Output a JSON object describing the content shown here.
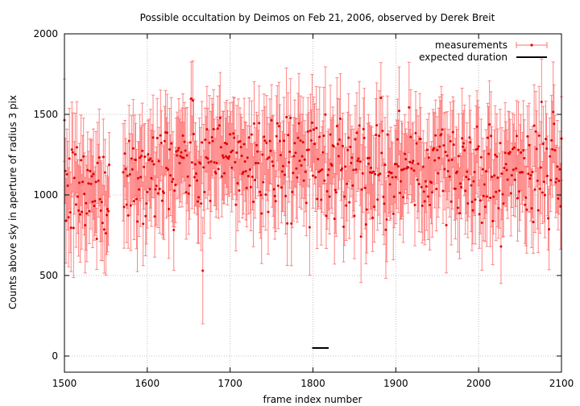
{
  "chart_data": {
    "type": "scatter",
    "title": "Possible occultation by Deimos on Feb 21, 2006, observed by Derek Breit",
    "xlabel": "frame index number",
    "ylabel": "Counts above sky in aperture of radius 3 pix",
    "xlim": [
      1500,
      2100
    ],
    "ylim": [
      -100,
      2000
    ],
    "xticks": [
      "1500",
      "1600",
      "1700",
      "1800",
      "1900",
      "2000",
      "2100"
    ],
    "yticks": [
      "0",
      "500",
      "1000",
      "1500",
      "2000"
    ],
    "grid": true,
    "legend_position": "top-right",
    "legend": [
      "measurements",
      "expected duration"
    ],
    "series": [
      {
        "name": "measurements",
        "style": "points-with-errorbars",
        "color": "#ff0000",
        "errorbar_color": "#ff7070",
        "x_range": [
          1500,
          2100
        ],
        "gap_x": [
          1555,
          1570
        ],
        "mean_y": 1180,
        "scatter_y": 160,
        "error_half_width_y": 250,
        "notable_points": [
          {
            "x": 1667,
            "y": 530,
            "err": 330
          }
        ]
      },
      {
        "name": "expected duration",
        "style": "line",
        "color": "#000000",
        "x": [
          1799,
          1819
        ],
        "y": [
          50,
          50
        ]
      }
    ]
  }
}
